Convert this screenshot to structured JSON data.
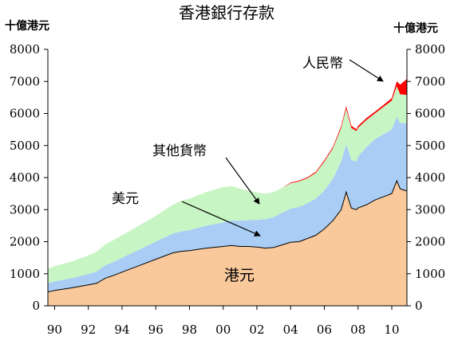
{
  "chart_data": {
    "type": "area",
    "title": "香港銀行存款",
    "ylabel_left": "十億港元",
    "ylabel_right": "十億港元",
    "ylim": [
      0,
      8000
    ],
    "yticks": [
      0,
      1000,
      2000,
      3000,
      4000,
      5000,
      6000,
      7000,
      8000
    ],
    "xlim": [
      1989.6,
      2010.9
    ],
    "xticks": [
      {
        "x": 1990,
        "label": "90"
      },
      {
        "x": 1992,
        "label": "92"
      },
      {
        "x": 1994,
        "label": "94"
      },
      {
        "x": 1996,
        "label": "96"
      },
      {
        "x": 1998,
        "label": "98"
      },
      {
        "x": 2000,
        "label": "00"
      },
      {
        "x": 2002,
        "label": "02"
      },
      {
        "x": 2004,
        "label": "04"
      },
      {
        "x": 2006,
        "label": "06"
      },
      {
        "x": 2008,
        "label": "08"
      },
      {
        "x": 2010,
        "label": "10"
      }
    ],
    "x": [
      1989.6,
      1990.0,
      1991.0,
      1992.0,
      1992.5,
      1993.0,
      1993.5,
      1994.0,
      1995.0,
      1996.0,
      1997.0,
      1997.5,
      1998.0,
      1999.0,
      2000.0,
      2000.5,
      2001.0,
      2001.5,
      2002.0,
      2002.5,
      2003.0,
      2003.5,
      2004.0,
      2004.5,
      2005.0,
      2005.5,
      2006.0,
      2006.5,
      2007.0,
      2007.3,
      2007.6,
      2007.9,
      2008.0,
      2008.5,
      2009.0,
      2009.5,
      2010.0,
      2010.3,
      2010.5,
      2010.9
    ],
    "series": [
      {
        "name": "港元",
        "color": "#f9c89b",
        "line_color": "#000000",
        "values": [
          430,
          480,
          560,
          650,
          700,
          860,
          950,
          1050,
          1250,
          1450,
          1650,
          1700,
          1720,
          1800,
          1850,
          1880,
          1850,
          1850,
          1830,
          1800,
          1820,
          1900,
          1980,
          2000,
          2100,
          2200,
          2400,
          2650,
          3000,
          3550,
          3050,
          3000,
          3050,
          3150,
          3300,
          3400,
          3500,
          3900,
          3650,
          3580
        ]
      },
      {
        "name": "美元",
        "color": "#a9cdf5",
        "values": [
          270,
          280,
          300,
          340,
          370,
          400,
          420,
          450,
          500,
          550,
          600,
          620,
          640,
          700,
          750,
          780,
          800,
          820,
          850,
          900,
          950,
          1000,
          1050,
          1080,
          1100,
          1150,
          1200,
          1300,
          1500,
          1500,
          1500,
          1500,
          1600,
          1800,
          1900,
          1950,
          2000,
          2000,
          2050,
          2120
        ]
      },
      {
        "name": "其他貨幣",
        "color": "#c7f5c3",
        "values": [
          450,
          480,
          520,
          580,
          620,
          650,
          680,
          700,
          750,
          800,
          900,
          950,
          980,
          1050,
          1100,
          1080,
          1000,
          920,
          850,
          800,
          780,
          780,
          790,
          800,
          780,
          800,
          900,
          950,
          1050,
          1100,
          1000,
          950,
          900,
          850,
          800,
          850,
          900,
          950,
          900,
          880
        ]
      },
      {
        "name": "人民幣",
        "color": "#ff0000",
        "values": [
          0,
          0,
          0,
          0,
          0,
          0,
          0,
          0,
          0,
          0,
          0,
          0,
          0,
          0,
          0,
          0,
          0,
          0,
          0,
          0,
          0,
          0,
          20,
          25,
          30,
          35,
          40,
          45,
          60,
          80,
          70,
          60,
          60,
          55,
          55,
          60,
          80,
          150,
          300,
          500
        ]
      }
    ],
    "annotations": [
      {
        "key": "rmb",
        "text": "人民幣"
      },
      {
        "key": "other",
        "text": "其他貨幣"
      },
      {
        "key": "usd",
        "text": "美元"
      },
      {
        "key": "hkd",
        "text": "港元"
      }
    ]
  }
}
